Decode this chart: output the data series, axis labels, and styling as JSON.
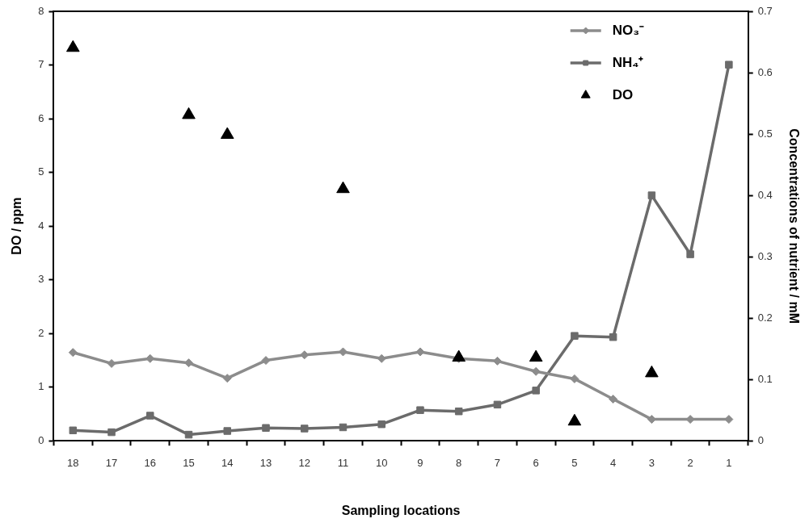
{
  "chart_data": {
    "type": "line",
    "xlabel": "Sampling locations",
    "ylabel": "DO / ppm",
    "y2label": "Concentrations of nutrient / mM",
    "categories": [
      "18",
      "17",
      "16",
      "15",
      "14",
      "13",
      "12",
      "11",
      "10",
      "9",
      "8",
      "7",
      "6",
      "5",
      "4",
      "3",
      "2",
      "1"
    ],
    "series": [
      {
        "name": "NO₃⁻",
        "axis": "y2",
        "marker": "diamond",
        "color": "#8c8c8c",
        "values": [
          0.144,
          0.126,
          0.134,
          0.127,
          0.102,
          0.131,
          0.14,
          0.145,
          0.134,
          0.145,
          0.134,
          0.13,
          0.113,
          0.101,
          0.068,
          0.035,
          0.035,
          0.035
        ]
      },
      {
        "name": "NH₄⁺",
        "axis": "y2",
        "marker": "square",
        "color": "#6b6b6b",
        "values": [
          0.017,
          0.014,
          0.041,
          0.01,
          0.016,
          0.021,
          0.02,
          0.022,
          0.027,
          0.05,
          0.048,
          0.059,
          0.082,
          0.171,
          0.169,
          0.4,
          0.304,
          0.613
        ]
      },
      {
        "name": "DO",
        "type": "scatter",
        "marker": "triangle",
        "color": "#000000",
        "x": [
          "18",
          "15",
          "14",
          "11",
          "8",
          "6",
          "5",
          "3"
        ],
        "values": [
          7.32,
          6.07,
          5.7,
          4.69,
          1.55,
          1.55,
          0.36,
          1.26
        ]
      }
    ],
    "ylim": [
      0,
      8
    ],
    "yticks": [
      0,
      1,
      2,
      3,
      4,
      5,
      6,
      7,
      8
    ],
    "y2lim": [
      0,
      0.7
    ],
    "y2ticks": [
      0,
      0.1,
      0.2,
      0.3,
      0.4,
      0.5,
      0.6,
      0.7
    ],
    "grid": false,
    "legend": "top right"
  }
}
